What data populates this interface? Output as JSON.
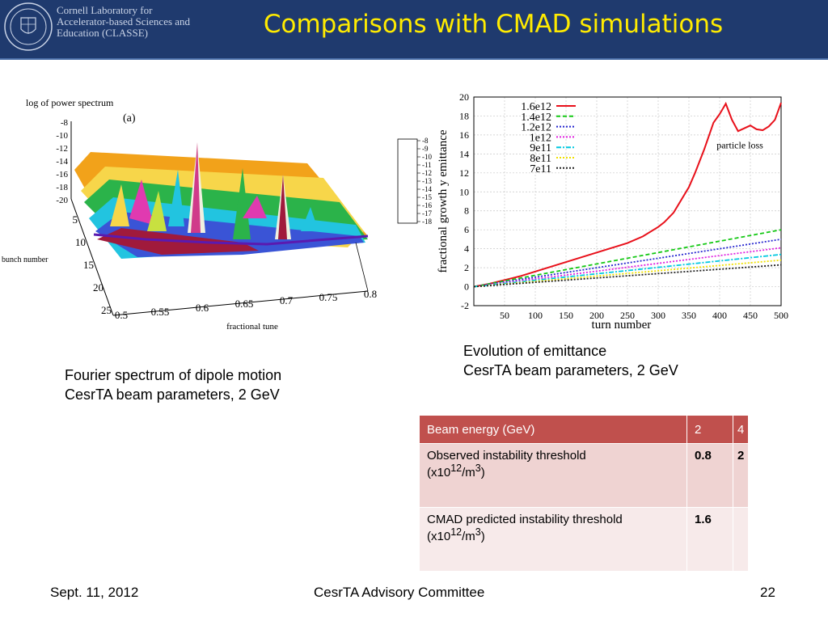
{
  "header": {
    "institution": "Cornell Laboratory for\nAccelerator-based Sciences and\nEducation (CLASSE)",
    "title": "Comparisons with CMAD simulations"
  },
  "figure_left": {
    "panel_label": "(a)",
    "zlabel": "log of power spectrum",
    "zticks": [
      "-8",
      "-10",
      "-12",
      "-14",
      "-16",
      "-18",
      "-20"
    ],
    "ylabel": "bunch number",
    "yticks": [
      "5",
      "10",
      "15",
      "20",
      "25"
    ],
    "xlabel": "fractional tune",
    "xticks": [
      "0.5",
      "0.55",
      "0.6",
      "0.65",
      "0.7",
      "0.75",
      "0.8"
    ],
    "colorbar_ticks": [
      "-8",
      "-9",
      "-10",
      "-11",
      "-12",
      "-13",
      "-14",
      "-15",
      "-16",
      "-17",
      "-18"
    ]
  },
  "chart_data": {
    "type": "line",
    "xlabel": "turn number",
    "ylabel": "fractional growth y emittance",
    "xlim": [
      0,
      500
    ],
    "ylim": [
      -2,
      20
    ],
    "xticks": [
      50,
      100,
      150,
      200,
      250,
      300,
      350,
      400,
      450,
      500
    ],
    "yticks": [
      -2,
      0,
      2,
      4,
      6,
      8,
      10,
      12,
      14,
      16,
      18,
      20
    ],
    "grid": true,
    "legend_position": "top-left",
    "annotation": "particle loss",
    "series": [
      {
        "name": "1.6e12",
        "color": "#e8101a",
        "style": "solid",
        "x": [
          0,
          25,
          50,
          75,
          100,
          125,
          150,
          175,
          200,
          225,
          250,
          275,
          300,
          310,
          325,
          350,
          360,
          375,
          390,
          400,
          410,
          420,
          430,
          440,
          450,
          460,
          470,
          480,
          490,
          500
        ],
        "y": [
          0,
          0.3,
          0.7,
          1.1,
          1.6,
          2.1,
          2.6,
          3.1,
          3.6,
          4.1,
          4.6,
          5.3,
          6.3,
          6.8,
          7.8,
          10.5,
          12,
          14.5,
          17.3,
          18.2,
          19.3,
          17.6,
          16.4,
          16.7,
          17,
          16.6,
          16.5,
          16.9,
          17.6,
          19.4
        ]
      },
      {
        "name": "1.4e12",
        "color": "#14c814",
        "style": "dashed",
        "x": [
          0,
          500
        ],
        "y": [
          0,
          6.0
        ]
      },
      {
        "name": "1.2e12",
        "color": "#2828d0",
        "style": "dotted",
        "x": [
          0,
          500
        ],
        "y": [
          0,
          5.0
        ]
      },
      {
        "name": "1e12",
        "color": "#e020e0",
        "style": "dotted",
        "x": [
          0,
          500
        ],
        "y": [
          0,
          4.1
        ]
      },
      {
        "name": "9e11",
        "color": "#00c8e0",
        "style": "dashdot",
        "x": [
          0,
          500
        ],
        "y": [
          0,
          3.4
        ]
      },
      {
        "name": "8e11",
        "color": "#f0e000",
        "style": "dotted",
        "x": [
          0,
          500
        ],
        "y": [
          0,
          2.8
        ]
      },
      {
        "name": "7e11",
        "color": "#202020",
        "style": "dotted",
        "x": [
          0,
          500
        ],
        "y": [
          0,
          2.3
        ]
      }
    ]
  },
  "captions": {
    "left_line1": "Fourier spectrum of dipole motion",
    "left_line2": "CesrTA beam parameters, 2 GeV",
    "right_line1": "Evolution of emittance",
    "right_line2": "CesrTA beam parameters, 2 GeV"
  },
  "table": {
    "header": [
      "Beam energy (GeV)",
      "2",
      "4"
    ],
    "row1_label_1": "Observed instability threshold",
    "row1_label_2": "(x10",
    "row1_sup_1": "12",
    "row1_label_3": "/m",
    "row1_sup_2": "3",
    "row1_label_4": ")",
    "row1_v1": "0.8",
    "row1_v2": "2",
    "row2_label_1": "CMAD predicted instability threshold",
    "row2_label_2": "(x10",
    "row2_sup_1": "12",
    "row2_label_3": "/m",
    "row2_sup_2": "3",
    "row2_label_4": ")",
    "row2_v1": "1.6",
    "row2_v2": ""
  },
  "footer": {
    "date": "Sept. 11, 2012",
    "center": "CesrTA Advisory Committee",
    "page": "22"
  }
}
